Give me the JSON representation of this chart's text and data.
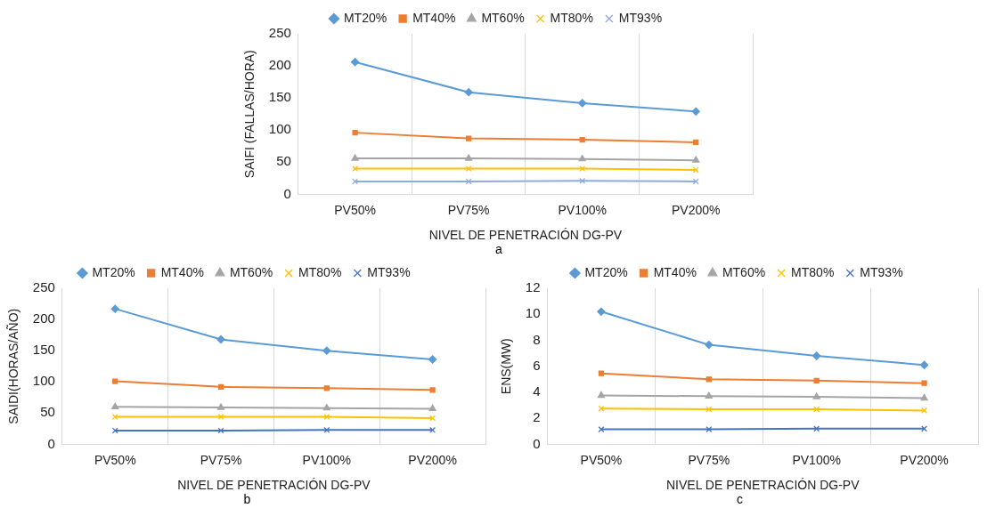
{
  "chart_data": [
    {
      "type": "line",
      "ylabel": "SAIFI (FALLAS/HORA)",
      "xlabel": "NIVEL DE PENETRACIÓN DG-PV",
      "annotations": [
        "a"
      ],
      "categories": [
        "PV50%",
        "PV75%",
        "PV100%",
        "PV200%"
      ],
      "ylim": [
        0,
        250
      ],
      "yticks": [
        0,
        50,
        100,
        150,
        200,
        250
      ],
      "grid": "x",
      "legend": "top",
      "series": [
        {
          "name": "MT20%",
          "color": "#5b9bd5",
          "marker": "diamond",
          "values": [
            206,
            159,
            142,
            129
          ]
        },
        {
          "name": "MT40%",
          "color": "#ed7d31",
          "marker": "square",
          "values": [
            96,
            87,
            85,
            81
          ]
        },
        {
          "name": "MT60%",
          "color": "#a5a5a5",
          "marker": "triangle",
          "values": [
            56,
            56,
            55,
            53
          ]
        },
        {
          "name": "MT80%",
          "color": "#ffc000",
          "marker": "cross",
          "values": [
            40,
            40,
            40,
            38
          ]
        },
        {
          "name": "MT93%",
          "color": "#8faadc",
          "marker": "cross",
          "values": [
            20,
            20,
            21,
            20
          ]
        }
      ]
    },
    {
      "type": "line",
      "ylabel": "SAIDI(HORAS/AÑO)",
      "xlabel": "NIVEL DE PENETRACIÓN DG-PV",
      "annotations": [
        "b"
      ],
      "categories": [
        "PV50%",
        "PV75%",
        "PV100%",
        "PV200%"
      ],
      "ylim": [
        0,
        250
      ],
      "yticks": [
        0,
        50,
        100,
        150,
        200,
        250
      ],
      "grid": "x",
      "legend": "top",
      "series": [
        {
          "name": "MT20%",
          "color": "#5b9bd5",
          "marker": "diamond",
          "values": [
            217,
            168,
            150,
            136
          ]
        },
        {
          "name": "MT40%",
          "color": "#ed7d31",
          "marker": "square",
          "values": [
            101,
            92,
            90,
            87
          ]
        },
        {
          "name": "MT60%",
          "color": "#a5a5a5",
          "marker": "triangle",
          "values": [
            60,
            59,
            58,
            57
          ]
        },
        {
          "name": "MT80%",
          "color": "#ffc000",
          "marker": "cross",
          "values": [
            44,
            44,
            44,
            42
          ]
        },
        {
          "name": "MT93%",
          "color": "#4472c4",
          "marker": "cross",
          "values": [
            22,
            22,
            23,
            23
          ]
        }
      ]
    },
    {
      "type": "line",
      "ylabel": "ENS(MW)",
      "xlabel": "NIVEL DE PENETRACIÓN DG-PV",
      "annotations": [
        "c"
      ],
      "categories": [
        "PV50%",
        "PV75%",
        "PV100%",
        "PV200%"
      ],
      "ylim": [
        0,
        12
      ],
      "yticks": [
        0,
        2,
        4,
        6,
        8,
        10,
        12
      ],
      "grid": "x",
      "legend": "top",
      "series": [
        {
          "name": "MT20%",
          "color": "#5b9bd5",
          "marker": "diamond",
          "values": [
            10.2,
            7.65,
            6.8,
            6.1
          ]
        },
        {
          "name": "MT40%",
          "color": "#ed7d31",
          "marker": "square",
          "values": [
            5.45,
            5.0,
            4.9,
            4.7
          ]
        },
        {
          "name": "MT60%",
          "color": "#a5a5a5",
          "marker": "triangle",
          "values": [
            3.75,
            3.7,
            3.65,
            3.55
          ]
        },
        {
          "name": "MT80%",
          "color": "#ffc000",
          "marker": "cross",
          "values": [
            2.75,
            2.7,
            2.7,
            2.6
          ]
        },
        {
          "name": "MT93%",
          "color": "#4472c4",
          "marker": "cross",
          "values": [
            1.15,
            1.15,
            1.2,
            1.2
          ]
        }
      ]
    }
  ]
}
